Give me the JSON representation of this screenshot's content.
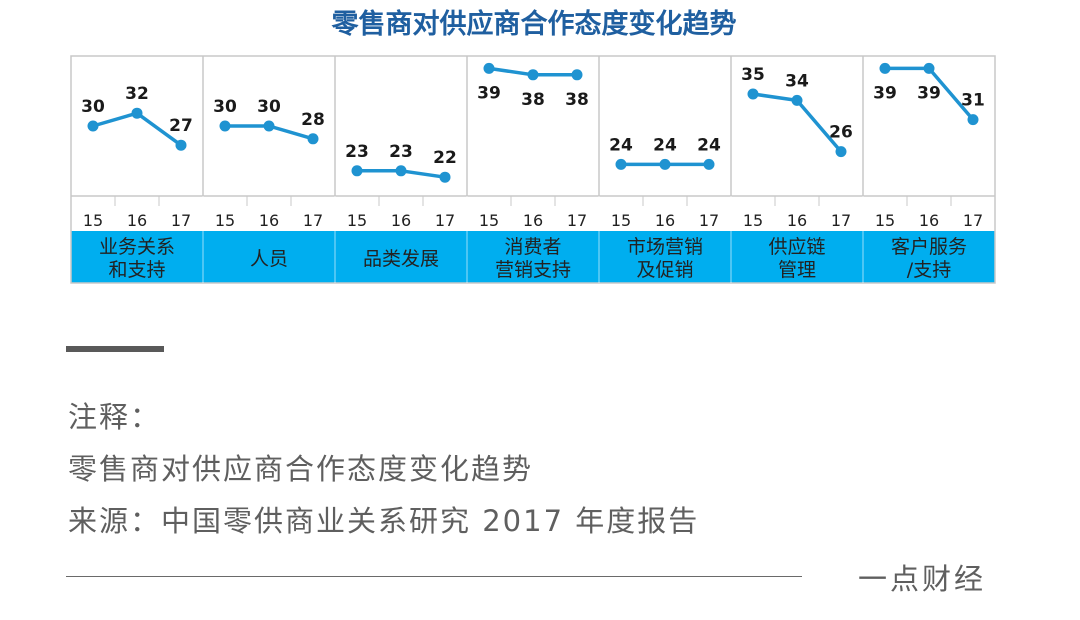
{
  "chart_data": {
    "type": "line",
    "title": "零售商对供应商合作态度变化趋势",
    "x": [
      "15",
      "16",
      "17"
    ],
    "panels": [
      {
        "label": "业务关系和支持",
        "label_lines": [
          "业务关系",
          "和支持"
        ],
        "values": [
          30,
          32,
          27
        ]
      },
      {
        "label": "人员",
        "label_lines": [
          "人员"
        ],
        "values": [
          30,
          30,
          28
        ]
      },
      {
        "label": "品类发展",
        "label_lines": [
          "品类发展"
        ],
        "values": [
          23,
          23,
          22
        ]
      },
      {
        "label": "消费者营销支持",
        "label_lines": [
          "消费者",
          "营销支持"
        ],
        "values": [
          39,
          38,
          38
        ]
      },
      {
        "label": "市场营销及促销",
        "label_lines": [
          "市场营销",
          "及促销"
        ],
        "values": [
          24,
          24,
          24
        ]
      },
      {
        "label": "供应链管理",
        "label_lines": [
          "供应链",
          "管理"
        ],
        "values": [
          35,
          34,
          26
        ]
      },
      {
        "label": "客户服务/支持",
        "label_lines": [
          "客户服务",
          "/支持"
        ],
        "values": [
          39,
          39,
          31
        ]
      }
    ],
    "ylim": [
      20,
      40
    ],
    "grid": false,
    "colors": {
      "line": "#1f93d1",
      "label_bar": "#00aeef",
      "title": "#1f5fa0"
    }
  },
  "notes": {
    "label": "注释：",
    "description": "零售商对供应商合作态度变化趋势",
    "source": "来源：中国零供商业关系研究 2017 年度报告"
  },
  "brand": "一点财经"
}
